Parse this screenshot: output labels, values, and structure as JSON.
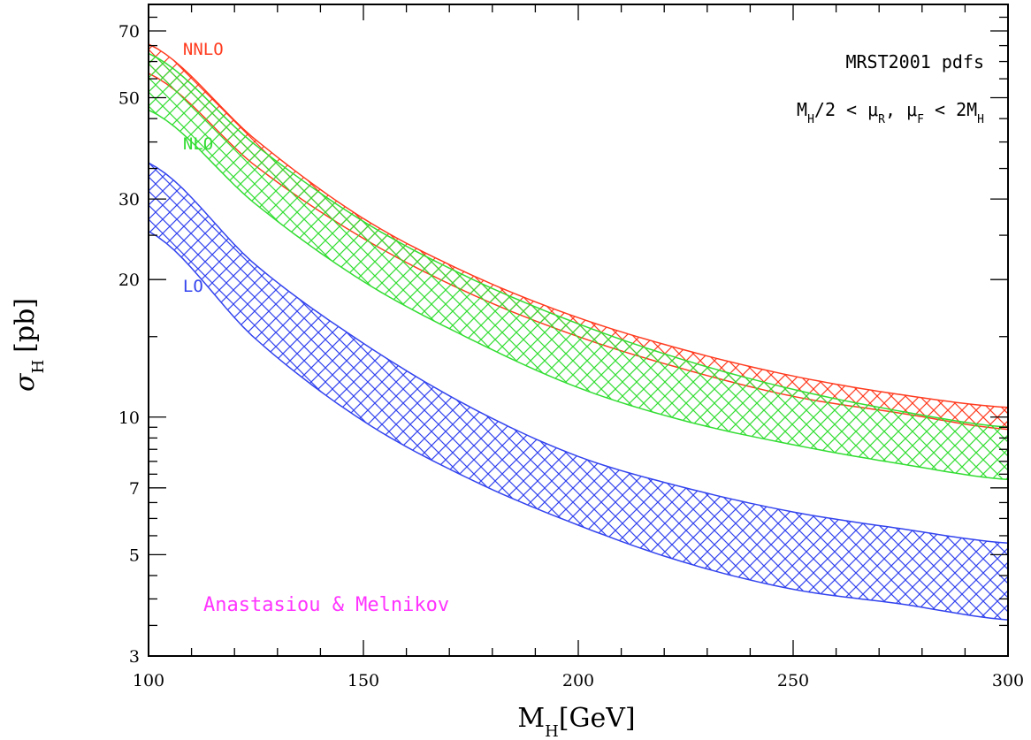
{
  "chart_data": {
    "type": "area",
    "x_scale": "linear",
    "y_scale": "log",
    "xlim": [
      100,
      300
    ],
    "ylim": [
      3,
      80
    ],
    "grid": false,
    "xlabel": {
      "main": "M",
      "sub": "H",
      "rest": "[GeV]"
    },
    "ylabel": {
      "main": "σ",
      "sub": "H",
      "rest": "[pb]"
    },
    "x_ticks": [
      100,
      150,
      200,
      250,
      300
    ],
    "y_ticks": [
      3,
      5,
      7,
      10,
      20,
      30,
      50,
      70
    ],
    "annotations": {
      "pdfs": "MRST2001 pdfs",
      "scale": {
        "t1": "M",
        "s1": "H",
        "t2": "/2 < μ",
        "s2": "R",
        "t3": ", μ",
        "s3": "F",
        "t4": " < 2M",
        "s4": "H"
      },
      "credit": "Anastasiou & Melnikov"
    },
    "colors": {
      "NNLO": "#ff3b1f",
      "NLO": "#33dd33",
      "LO": "#3344ee",
      "credit": "#ff33ff"
    },
    "series": [
      {
        "name": "NNLO",
        "x": [
          100,
          125,
          150,
          175,
          200,
          225,
          250,
          275,
          300
        ],
        "upper": [
          65.5,
          40.4,
          27.2,
          20.5,
          16.5,
          14.0,
          12.3,
          11.2,
          10.5
        ],
        "lower": [
          56.5,
          35.4,
          24.6,
          18.6,
          15.0,
          12.7,
          11.1,
          10.2,
          9.4
        ]
      },
      {
        "name": "NLO",
        "x": [
          100,
          125,
          150,
          175,
          200,
          225,
          250,
          275,
          300
        ],
        "upper": [
          62.5,
          39.3,
          26.8,
          20.1,
          16.0,
          13.3,
          11.5,
          10.3,
          9.5
        ],
        "lower": [
          47.0,
          29.2,
          19.8,
          14.8,
          11.6,
          9.8,
          8.7,
          7.9,
          7.3
        ]
      },
      {
        "name": "LO",
        "x": [
          100,
          125,
          150,
          175,
          200,
          225,
          250,
          275,
          300
        ],
        "upper": [
          36.0,
          21.5,
          14.5,
          10.5,
          8.2,
          7.0,
          6.2,
          5.7,
          5.3
        ],
        "lower": [
          25.5,
          14.8,
          9.8,
          7.3,
          5.8,
          4.8,
          4.2,
          3.9,
          3.6
        ]
      }
    ]
  }
}
